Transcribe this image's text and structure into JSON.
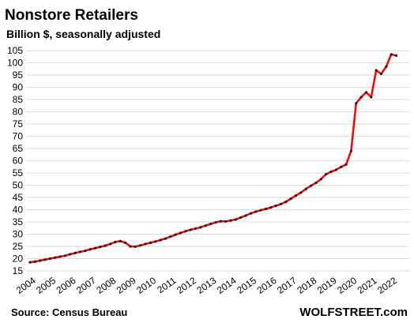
{
  "chart_data": {
    "type": "line",
    "title": "Nonstore Retailers",
    "subtitle": "Billion $, seasonally adjusted",
    "source": "Source: Census Bureau",
    "watermark": "WOLFSTREET.com",
    "categories": [
      "2004",
      null,
      null,
      null,
      "2005",
      null,
      null,
      null,
      "2006",
      null,
      null,
      null,
      "2007",
      null,
      null,
      null,
      "2008",
      null,
      null,
      null,
      "2009",
      null,
      null,
      null,
      "2010",
      null,
      null,
      null,
      "2011",
      null,
      null,
      null,
      "2012",
      null,
      null,
      null,
      "2013",
      null,
      null,
      null,
      "2014",
      null,
      null,
      null,
      "2015",
      null,
      null,
      null,
      "2016",
      null,
      null,
      null,
      "2017",
      null,
      null,
      null,
      "2018",
      null,
      null,
      null,
      "2019",
      null,
      null,
      null,
      "2020",
      null,
      null,
      null,
      "2021",
      null,
      null,
      null,
      "2022",
      null
    ],
    "series": [
      {
        "name": "Nonstore Retailers",
        "color": "#ff0000",
        "marker_color": "#1a1a1a",
        "values": [
          18.5,
          18.8,
          19.2,
          19.6,
          20.0,
          20.4,
          20.8,
          21.2,
          21.8,
          22.3,
          22.8,
          23.2,
          23.8,
          24.3,
          24.8,
          25.3,
          26.0,
          26.8,
          27.2,
          26.5,
          25.0,
          24.9,
          25.4,
          26.0,
          26.5,
          27.0,
          27.6,
          28.2,
          29.0,
          29.8,
          30.5,
          31.2,
          31.8,
          32.3,
          32.8,
          33.5,
          34.2,
          34.8,
          35.3,
          35.2,
          35.6,
          36.0,
          36.8,
          37.6,
          38.5,
          39.2,
          39.8,
          40.3,
          40.9,
          41.6,
          42.3,
          43.2,
          44.5,
          45.8,
          47.0,
          48.5,
          49.8,
          51.0,
          52.5,
          54.5,
          55.5,
          56.3,
          57.5,
          58.5,
          64.0,
          83.5,
          86.0,
          88.0,
          86.0,
          97.0,
          95.5,
          98.5,
          103.5,
          103.0
        ]
      }
    ],
    "ylim": [
      15,
      107
    ],
    "yticks": [
      15,
      20,
      25,
      30,
      35,
      40,
      45,
      50,
      55,
      60,
      65,
      70,
      75,
      80,
      85,
      90,
      95,
      100,
      105
    ],
    "grid": true
  }
}
